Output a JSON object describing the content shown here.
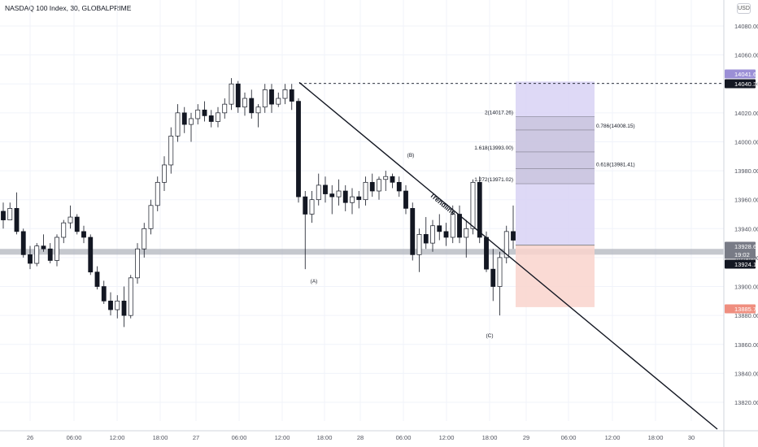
{
  "header": {
    "symbol_title": "NASDAQ 100 Index, 30, GLOBALPRIME",
    "currency": "USD"
  },
  "chart_data": {
    "type": "candlestick",
    "title": "NASDAQ 100 Index, 30, GLOBALPRIME",
    "ylim": [
      13800,
      14090
    ],
    "y_ticks": [
      13820,
      13840,
      13860,
      13880,
      13900,
      13920,
      13940,
      13960,
      13980,
      14000,
      14020,
      14040,
      14060,
      14080
    ],
    "y_tick_labels": [
      "13820.00",
      "13840.00",
      "13860.00",
      "13880.00",
      "13900.00",
      "13920.00",
      "13940.00",
      "13960.00",
      "13980.00",
      "14000.00",
      "14020.00",
      "14040.00",
      "14060.00",
      "14080.00"
    ],
    "x_ticks": [
      "26",
      "06:00",
      "12:00",
      "18:00",
      "27",
      "06:00",
      "12:00",
      "18:00",
      "28",
      "06:00",
      "12:00",
      "18:00",
      "29",
      "06:00",
      "12:00",
      "18:00",
      "30"
    ],
    "price_labels": [
      {
        "text": "14041.61",
        "value": 14041.61,
        "color": "#9b8fd6"
      },
      {
        "text": "14040.32",
        "value": 14040.32,
        "color": "#131722"
      },
      {
        "text": "13928.60",
        "value": 13928.6,
        "color": "#787b86"
      },
      {
        "text": "19:02",
        "value": 13923.7,
        "color": "#787b86"
      },
      {
        "text": "13924.16",
        "value": 13924.16,
        "color": "#131722"
      },
      {
        "text": "13885.75",
        "value": 13885.75,
        "color": "#ef8e7f"
      }
    ],
    "horizontal_levels": [
      {
        "name": "top-dashed-level",
        "value": 14040.32,
        "style": "dashed"
      }
    ],
    "support_zone": {
      "from": 13922,
      "to": 13926
    },
    "trendline": {
      "label": "Trendline",
      "start": {
        "time": "27 13:30",
        "price": 14041
      },
      "end": {
        "time": "30 02:00",
        "price": 13815
      }
    },
    "wave_labels": [
      "(A)",
      "(B)",
      "(C)"
    ],
    "fib_levels": [
      {
        "text": "2(14017.26)",
        "value": 14017.26
      },
      {
        "text": "0.786(14008.15)",
        "value": 14008.15
      },
      {
        "text": "1.618(13993.00)",
        "value": 13993.0
      },
      {
        "text": "0.618(13981.41)",
        "value": 13981.41
      },
      {
        "text": "1.272(13971.02)",
        "value": 13971.02
      }
    ],
    "position": {
      "type": "long",
      "entry": 13928.6,
      "target": 14041.61,
      "stop": 13885.75
    },
    "candles": [
      [
        13952,
        13958,
        13940,
        13946
      ],
      [
        13946,
        13958,
        13946,
        13954
      ],
      [
        13954,
        13965,
        13936,
        13938
      ],
      [
        13938,
        13940,
        13920,
        13922
      ],
      [
        13922,
        13928,
        13912,
        13916
      ],
      [
        13916,
        13930,
        13914,
        13928
      ],
      [
        13928,
        13936,
        13924,
        13926
      ],
      [
        13926,
        13930,
        13916,
        13918
      ],
      [
        13918,
        13936,
        13914,
        13934
      ],
      [
        13934,
        13946,
        13930,
        13944
      ],
      [
        13944,
        13956,
        13940,
        13948
      ],
      [
        13948,
        13950,
        13936,
        13938
      ],
      [
        13938,
        13942,
        13930,
        13934
      ],
      [
        13934,
        13936,
        13908,
        13910
      ],
      [
        13910,
        13914,
        13898,
        13900
      ],
      [
        13900,
        13904,
        13888,
        13890
      ],
      [
        13890,
        13896,
        13880,
        13884
      ],
      [
        13884,
        13894,
        13878,
        13890
      ],
      [
        13890,
        13900,
        13872,
        13880
      ],
      [
        13880,
        13908,
        13878,
        13906
      ],
      [
        13906,
        13930,
        13902,
        13926
      ],
      [
        13926,
        13944,
        13920,
        13940
      ],
      [
        13940,
        13960,
        13936,
        13956
      ],
      [
        13956,
        13976,
        13952,
        13972
      ],
      [
        13972,
        13990,
        13966,
        13984
      ],
      [
        13984,
        14010,
        13978,
        14004
      ],
      [
        14004,
        14026,
        14000,
        14020
      ],
      [
        14020,
        14024,
        14006,
        14012
      ],
      [
        14012,
        14020,
        14000,
        14016
      ],
      [
        14016,
        14026,
        14012,
        14022
      ],
      [
        14022,
        14028,
        14014,
        14018
      ],
      [
        14018,
        14022,
        14010,
        14014
      ],
      [
        14014,
        14024,
        14010,
        14020
      ],
      [
        14020,
        14030,
        14016,
        14026
      ],
      [
        14026,
        14044,
        14022,
        14040
      ],
      [
        14040,
        14042,
        14020,
        14024
      ],
      [
        14024,
        14034,
        14018,
        14030
      ],
      [
        14030,
        14036,
        14016,
        14020
      ],
      [
        14020,
        14026,
        14010,
        14024
      ],
      [
        14024,
        14040,
        14020,
        14036
      ],
      [
        14036,
        14040,
        14020,
        14026
      ],
      [
        14026,
        14034,
        14024,
        14030
      ],
      [
        14030,
        14040,
        14026,
        14036
      ],
      [
        14036,
        14040,
        14022,
        14028
      ],
      [
        14028,
        14030,
        13958,
        13962
      ],
      [
        13962,
        13966,
        13912,
        13950
      ],
      [
        13950,
        13966,
        13944,
        13960
      ],
      [
        13960,
        13978,
        13956,
        13970
      ],
      [
        13970,
        13976,
        13958,
        13964
      ],
      [
        13964,
        13970,
        13950,
        13962
      ],
      [
        13962,
        13974,
        13956,
        13966
      ],
      [
        13966,
        13970,
        13952,
        13958
      ],
      [
        13958,
        13968,
        13950,
        13962
      ],
      [
        13962,
        13966,
        13954,
        13960
      ],
      [
        13960,
        13976,
        13956,
        13972
      ],
      [
        13972,
        13978,
        13962,
        13966
      ],
      [
        13966,
        13976,
        13960,
        13974
      ],
      [
        13974,
        13980,
        13966,
        13976
      ],
      [
        13976,
        13978,
        13968,
        13972
      ],
      [
        13972,
        13976,
        13962,
        13966
      ],
      [
        13966,
        13970,
        13950,
        13954
      ],
      [
        13954,
        13958,
        13918,
        13922
      ],
      [
        13922,
        13940,
        13910,
        13936
      ],
      [
        13936,
        13948,
        13926,
        13930
      ],
      [
        13930,
        13946,
        13924,
        13942
      ],
      [
        13942,
        13950,
        13932,
        13938
      ],
      [
        13938,
        13944,
        13928,
        13934
      ],
      [
        13934,
        13956,
        13930,
        13950
      ],
      [
        13950,
        13956,
        13930,
        13934
      ],
      [
        13934,
        13946,
        13920,
        13940
      ],
      [
        13940,
        13974,
        13936,
        13972
      ],
      [
        13972,
        13976,
        13930,
        13934
      ],
      [
        13934,
        13938,
        13910,
        13912
      ],
      [
        13912,
        13926,
        13890,
        13900
      ],
      [
        13900,
        13924,
        13880,
        13920
      ],
      [
        13920,
        13942,
        13916,
        13938
      ],
      [
        13938,
        13956,
        13926,
        13932
      ]
    ]
  }
}
